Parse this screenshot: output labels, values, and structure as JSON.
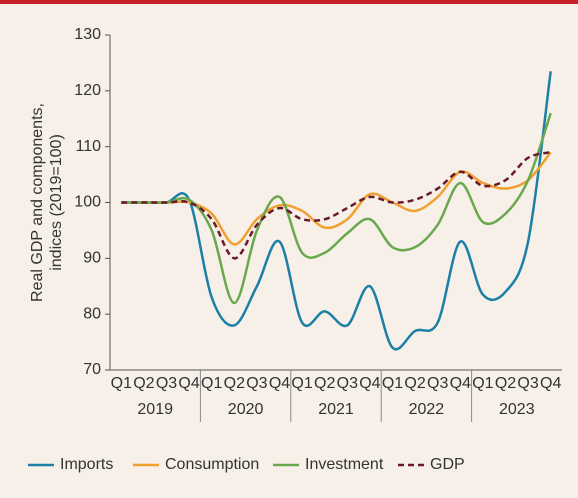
{
  "chart_data": {
    "type": "line",
    "y_label": [
      "Real GDP and components,",
      "indices (2019=100)"
    ],
    "categories": [
      "Q1",
      "Q2",
      "Q3",
      "Q4",
      "Q1",
      "Q2",
      "Q3",
      "Q4",
      "Q1",
      "Q2",
      "Q3",
      "Q4",
      "Q1",
      "Q2",
      "Q3",
      "Q4",
      "Q1",
      "Q2",
      "Q3",
      "Q4"
    ],
    "years": [
      "2019",
      "2020",
      "2021",
      "2022",
      "2023"
    ],
    "series": [
      {
        "name": "Imports",
        "color": "#1b7fa6",
        "dash": false,
        "values": [
          100,
          100,
          100,
          100.5,
          83,
          78,
          85,
          93,
          78.5,
          80.5,
          78,
          85,
          74,
          77,
          78.5,
          93,
          83.5,
          84,
          93,
          123.5
        ]
      },
      {
        "name": "Consumption",
        "color": "#f0a030",
        "dash": false,
        "values": [
          100,
          100,
          100,
          100,
          98,
          92.5,
          97,
          99.5,
          98.5,
          95.5,
          97,
          101.5,
          100,
          98.5,
          101,
          105.5,
          103.5,
          102.5,
          104,
          109
        ]
      },
      {
        "name": "Investment",
        "color": "#6aa84f",
        "dash": false,
        "values": [
          100,
          100,
          100,
          100.5,
          95,
          82,
          95,
          101,
          91,
          91,
          94.5,
          97,
          92,
          92,
          96,
          103.5,
          96.5,
          98,
          104,
          116
        ]
      },
      {
        "name": "GDP",
        "color": "#6b1a2a",
        "dash": true,
        "values": [
          100,
          100,
          100,
          100,
          97,
          90,
          96,
          99,
          97,
          97,
          99,
          101,
          100,
          100.5,
          102.5,
          105.5,
          103,
          104,
          108,
          109
        ]
      }
    ],
    "ylim": [
      70,
      130
    ],
    "yticks": [
      70,
      80,
      90,
      100,
      110,
      120,
      130
    ],
    "grid": false,
    "legend": "bottom"
  }
}
